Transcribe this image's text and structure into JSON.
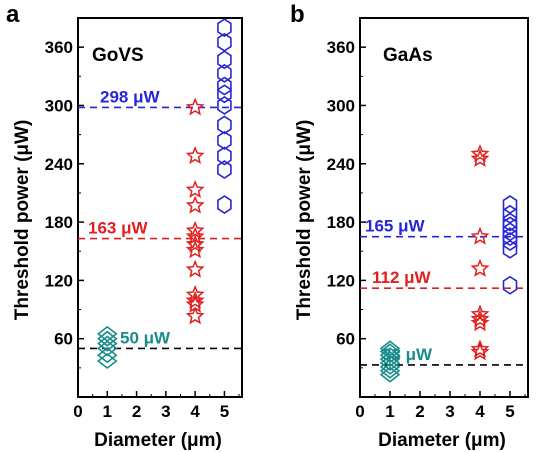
{
  "chart_data": [
    {
      "type": "scatter",
      "panel": "a",
      "material": "GoVS",
      "xlabel": "Diameter  (μm)",
      "ylabel": "Threshold power (μW)",
      "xlim": [
        0,
        5.6
      ],
      "ylim": [
        0,
        390
      ],
      "xticks": [
        0,
        1,
        2,
        3,
        4,
        5
      ],
      "yticks": [
        60,
        120,
        180,
        240,
        300,
        360
      ],
      "series": [
        {
          "marker": "diamond",
          "color": "#1a8c8c",
          "x": 1,
          "values": [
            37,
            43,
            50,
            55,
            60,
            65
          ]
        },
        {
          "marker": "star",
          "color": "#e11f1f",
          "x": 4,
          "values": [
            298,
            248,
            213,
            197,
            171,
            165,
            157,
            151,
            131,
            105,
            99,
            95,
            83
          ]
        },
        {
          "marker": "hexagon",
          "color": "#2626d6",
          "x": 5,
          "values": [
            380,
            365,
            347,
            333,
            320,
            312,
            300,
            280,
            264,
            248,
            234,
            198
          ]
        }
      ],
      "reference_lines": [
        {
          "value": 298,
          "label": "298 μW",
          "color": "#2626d6"
        },
        {
          "value": 163,
          "label": "163 μW",
          "color": "#e11f1f"
        },
        {
          "value": 50,
          "label": "50 μW",
          "color": "#000000",
          "label_color": "#1a8c8c"
        }
      ]
    },
    {
      "type": "scatter",
      "panel": "b",
      "material": "GaAs",
      "xlabel": "Diameter  (μm)",
      "ylabel": "Threshold power (μW)",
      "xlim": [
        0,
        5.6
      ],
      "ylim": [
        0,
        390
      ],
      "xticks": [
        0,
        1,
        2,
        3,
        4,
        5
      ],
      "yticks": [
        60,
        120,
        180,
        240,
        300,
        360
      ],
      "series": [
        {
          "marker": "diamond",
          "color": "#1a8c8c",
          "x": 1,
          "values": [
            23,
            27,
            31,
            35,
            39,
            43,
            47,
            50
          ]
        },
        {
          "marker": "star",
          "color": "#e11f1f",
          "x": 4,
          "values": [
            250,
            245,
            165,
            132,
            85,
            80,
            76,
            49,
            46
          ]
        },
        {
          "marker": "hexagon",
          "color": "#2626d6",
          "x": 5,
          "values": [
            198,
            188,
            180,
            176,
            170,
            165,
            160,
            152,
            115
          ]
        }
      ],
      "reference_lines": [
        {
          "value": 165,
          "label": "165 μW",
          "color": "#2626d6"
        },
        {
          "value": 112,
          "label": "112 μW",
          "color": "#e11f1f"
        },
        {
          "value": 33,
          "label": "33 μW",
          "color": "#000000",
          "label_color": "#1a8c8c"
        }
      ]
    }
  ]
}
